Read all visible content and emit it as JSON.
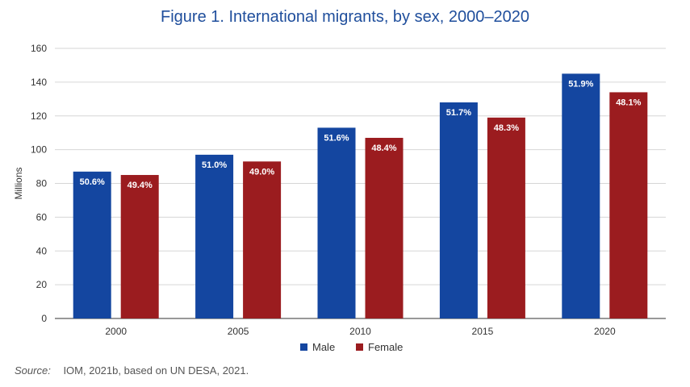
{
  "chart_data": {
    "type": "bar",
    "title": "Figure 1. International migrants, by sex, 2000–2020",
    "xlabel": "",
    "ylabel": "Millions",
    "ylim": [
      0,
      160
    ],
    "yticks": [
      0,
      20,
      40,
      60,
      80,
      100,
      120,
      140,
      160
    ],
    "grid": true,
    "legend_position": "bottom-center",
    "categories": [
      "2000",
      "2005",
      "2010",
      "2015",
      "2020"
    ],
    "series": [
      {
        "name": "Male",
        "color": "#1446a0",
        "values": [
          87,
          97,
          113,
          128,
          145
        ],
        "labels": [
          "50.6%",
          "51.0%",
          "51.6%",
          "51.7%",
          "51.9%"
        ]
      },
      {
        "name": "Female",
        "color": "#9b1c1f",
        "values": [
          85,
          93,
          107,
          119,
          134
        ],
        "labels": [
          "49.4%",
          "49.0%",
          "48.4%",
          "48.3%",
          "48.1%"
        ]
      }
    ]
  },
  "source": {
    "label": "Source:",
    "text": "IOM, 2021b, based on UN DESA, 2021."
  }
}
